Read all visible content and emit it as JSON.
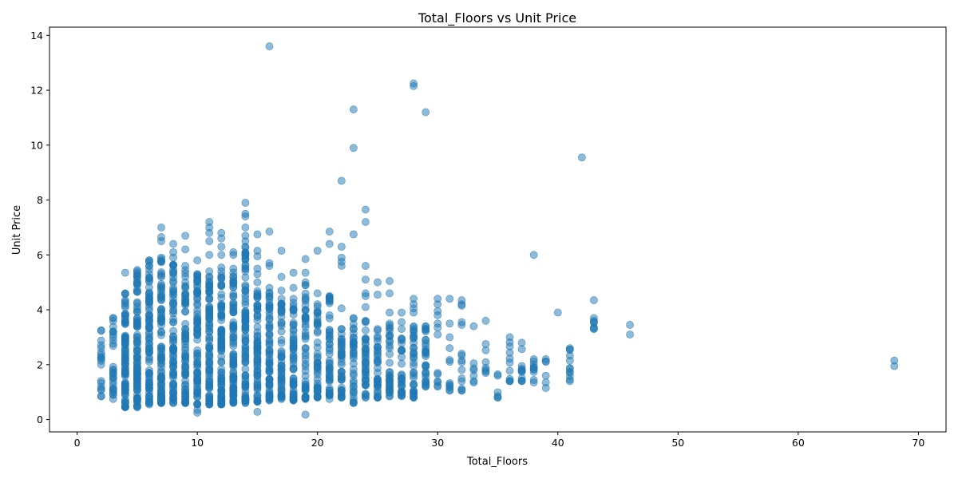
{
  "chart_data": {
    "type": "scatter",
    "title": "Total_Floors vs Unit Price",
    "xlabel": "Total_Floors",
    "ylabel": "Unit Price",
    "xlim": [
      -2.3,
      72.3
    ],
    "ylim": [
      -0.45,
      14.3
    ],
    "x_ticks": [
      0,
      10,
      20,
      30,
      40,
      50,
      60,
      70
    ],
    "y_ticks": [
      0,
      2,
      4,
      6,
      8,
      10,
      12,
      14
    ],
    "grid": false,
    "marker_color": "#1f77b4",
    "marker_alpha": 0.5,
    "columns": [
      {
        "x": 2,
        "min": 0.85,
        "max": 3.25,
        "n": 16
      },
      {
        "x": 3,
        "min": 0.75,
        "max": 3.7,
        "n": 26
      },
      {
        "x": 4,
        "min": 0.45,
        "max": 4.6,
        "n": 90
      },
      {
        "x": 5,
        "min": 0.45,
        "max": 5.4,
        "n": 95
      },
      {
        "x": 6,
        "min": 0.55,
        "max": 5.8,
        "n": 80
      },
      {
        "x": 7,
        "min": 0.6,
        "max": 5.9,
        "n": 90
      },
      {
        "x": 8,
        "min": 0.6,
        "max": 5.9,
        "n": 75
      },
      {
        "x": 9,
        "min": 0.6,
        "max": 5.6,
        "n": 75
      },
      {
        "x": 10,
        "min": 0.55,
        "max": 5.3,
        "n": 75
      },
      {
        "x": 11,
        "min": 0.55,
        "max": 5.4,
        "n": 80
      },
      {
        "x": 12,
        "min": 0.55,
        "max": 6.0,
        "n": 95
      },
      {
        "x": 13,
        "min": 0.6,
        "max": 5.5,
        "n": 85
      },
      {
        "x": 14,
        "min": 0.6,
        "max": 6.3,
        "n": 90
      },
      {
        "x": 15,
        "min": 0.65,
        "max": 5.0,
        "n": 65
      },
      {
        "x": 16,
        "min": 0.7,
        "max": 4.8,
        "n": 65
      },
      {
        "x": 17,
        "min": 0.75,
        "max": 4.4,
        "n": 50
      },
      {
        "x": 18,
        "min": 0.7,
        "max": 4.4,
        "n": 55
      },
      {
        "x": 19,
        "min": 0.75,
        "max": 4.9,
        "n": 50
      },
      {
        "x": 20,
        "min": 0.8,
        "max": 4.2,
        "n": 45
      },
      {
        "x": 21,
        "min": 0.75,
        "max": 4.5,
        "n": 45
      },
      {
        "x": 22,
        "min": 0.8,
        "max": 3.3,
        "n": 40
      },
      {
        "x": 23,
        "min": 0.6,
        "max": 3.7,
        "n": 35
      },
      {
        "x": 24,
        "min": 0.8,
        "max": 3.6,
        "n": 40
      },
      {
        "x": 25,
        "min": 0.8,
        "max": 3.3,
        "n": 35
      },
      {
        "x": 26,
        "min": 0.85,
        "max": 3.5,
        "n": 35
      },
      {
        "x": 27,
        "min": 0.85,
        "max": 3.3,
        "n": 30
      },
      {
        "x": 28,
        "min": 0.8,
        "max": 3.4,
        "n": 35
      },
      {
        "x": 29,
        "min": 1.2,
        "max": 3.4,
        "n": 30
      },
      {
        "x": 30,
        "min": 1.2,
        "max": 1.7,
        "n": 4
      },
      {
        "x": 31,
        "min": 1.05,
        "max": 2.6,
        "n": 7
      },
      {
        "x": 32,
        "min": 1.05,
        "max": 2.4,
        "n": 8
      },
      {
        "x": 33,
        "min": 1.35,
        "max": 2.05,
        "n": 4
      },
      {
        "x": 34,
        "min": 1.7,
        "max": 2.75,
        "n": 5
      },
      {
        "x": 35,
        "min": 0.8,
        "max": 1.65,
        "n": 4
      },
      {
        "x": 36,
        "min": 1.4,
        "max": 3.0,
        "n": 9
      },
      {
        "x": 37,
        "min": 1.4,
        "max": 2.8,
        "n": 10
      },
      {
        "x": 38,
        "min": 1.35,
        "max": 2.2,
        "n": 8
      },
      {
        "x": 39,
        "min": 1.15,
        "max": 2.2,
        "n": 4
      },
      {
        "x": 41,
        "min": 1.4,
        "max": 2.6,
        "n": 10
      },
      {
        "x": 43,
        "min": 3.3,
        "max": 3.6,
        "n": 3
      }
    ],
    "extra_points": [
      [
        2,
        0.85
      ],
      [
        3,
        0.9
      ],
      [
        3,
        1.1
      ],
      [
        3,
        3.7
      ],
      [
        4,
        5.35
      ],
      [
        5,
        5.0
      ],
      [
        5,
        5.45
      ],
      [
        6,
        5.6
      ],
      [
        6,
        5.8
      ],
      [
        7,
        6.5
      ],
      [
        7,
        6.65
      ],
      [
        7,
        7.0
      ],
      [
        8,
        6.1
      ],
      [
        8,
        6.4
      ],
      [
        9,
        6.2
      ],
      [
        9,
        6.7
      ],
      [
        10,
        0.25
      ],
      [
        10,
        0.35
      ],
      [
        10,
        5.8
      ],
      [
        11,
        6.0
      ],
      [
        11,
        6.5
      ],
      [
        11,
        6.8
      ],
      [
        11,
        7.0
      ],
      [
        11,
        7.2
      ],
      [
        12,
        6.3
      ],
      [
        12,
        6.6
      ],
      [
        12,
        6.8
      ],
      [
        13,
        6.0
      ],
      [
        13,
        6.1
      ],
      [
        14,
        6.5
      ],
      [
        14,
        6.7
      ],
      [
        14,
        7.0
      ],
      [
        14,
        7.4
      ],
      [
        14,
        7.5
      ],
      [
        14,
        7.9
      ],
      [
        15,
        0.28
      ],
      [
        15,
        5.3
      ],
      [
        15,
        5.5
      ],
      [
        15,
        5.95
      ],
      [
        15,
        6.15
      ],
      [
        15,
        6.75
      ],
      [
        16,
        5.6
      ],
      [
        16,
        5.7
      ],
      [
        16,
        6.85
      ],
      [
        16,
        13.6
      ],
      [
        17,
        4.7
      ],
      [
        17,
        5.2
      ],
      [
        17,
        6.15
      ],
      [
        18,
        4.8
      ],
      [
        18,
        5.35
      ],
      [
        19,
        0.18
      ],
      [
        19,
        4.9
      ],
      [
        19,
        5.0
      ],
      [
        19,
        5.35
      ],
      [
        19,
        5.85
      ],
      [
        20,
        4.6
      ],
      [
        20,
        6.15
      ],
      [
        21,
        3.8
      ],
      [
        21,
        4.4
      ],
      [
        21,
        6.4
      ],
      [
        21,
        6.85
      ],
      [
        22,
        4.05
      ],
      [
        22,
        5.6
      ],
      [
        22,
        5.75
      ],
      [
        22,
        5.9
      ],
      [
        22,
        6.3
      ],
      [
        22,
        8.7
      ],
      [
        23,
        6.75
      ],
      [
        23,
        9.9
      ],
      [
        23,
        11.3
      ],
      [
        24,
        4.1
      ],
      [
        24,
        4.5
      ],
      [
        24,
        4.6
      ],
      [
        24,
        5.1
      ],
      [
        24,
        5.6
      ],
      [
        24,
        7.2
      ],
      [
        24,
        7.65
      ],
      [
        25,
        4.55
      ],
      [
        25,
        5.0
      ],
      [
        26,
        3.9
      ],
      [
        26,
        4.6
      ],
      [
        26,
        5.05
      ],
      [
        27,
        3.55
      ],
      [
        27,
        3.9
      ],
      [
        28,
        3.9
      ],
      [
        28,
        4.05
      ],
      [
        28,
        4.2
      ],
      [
        28,
        4.4
      ],
      [
        28,
        12.15
      ],
      [
        28,
        12.25
      ],
      [
        29,
        11.2
      ],
      [
        30,
        3.1
      ],
      [
        30,
        3.35
      ],
      [
        30,
        3.5
      ],
      [
        30,
        3.8
      ],
      [
        30,
        3.95
      ],
      [
        30,
        4.2
      ],
      [
        30,
        4.4
      ],
      [
        31,
        3.0
      ],
      [
        31,
        3.5
      ],
      [
        31,
        4.4
      ],
      [
        32,
        3.45
      ],
      [
        32,
        3.55
      ],
      [
        32,
        4.15
      ],
      [
        32,
        4.2
      ],
      [
        32,
        4.35
      ],
      [
        33,
        3.4
      ],
      [
        34,
        3.6
      ],
      [
        38,
        6.0
      ],
      [
        40,
        3.9
      ],
      [
        42,
        9.55
      ],
      [
        43,
        3.55
      ],
      [
        43,
        3.7
      ],
      [
        43,
        4.35
      ],
      [
        46,
        3.1
      ],
      [
        46,
        3.45
      ],
      [
        68,
        1.95
      ],
      [
        68,
        2.15
      ]
    ]
  }
}
